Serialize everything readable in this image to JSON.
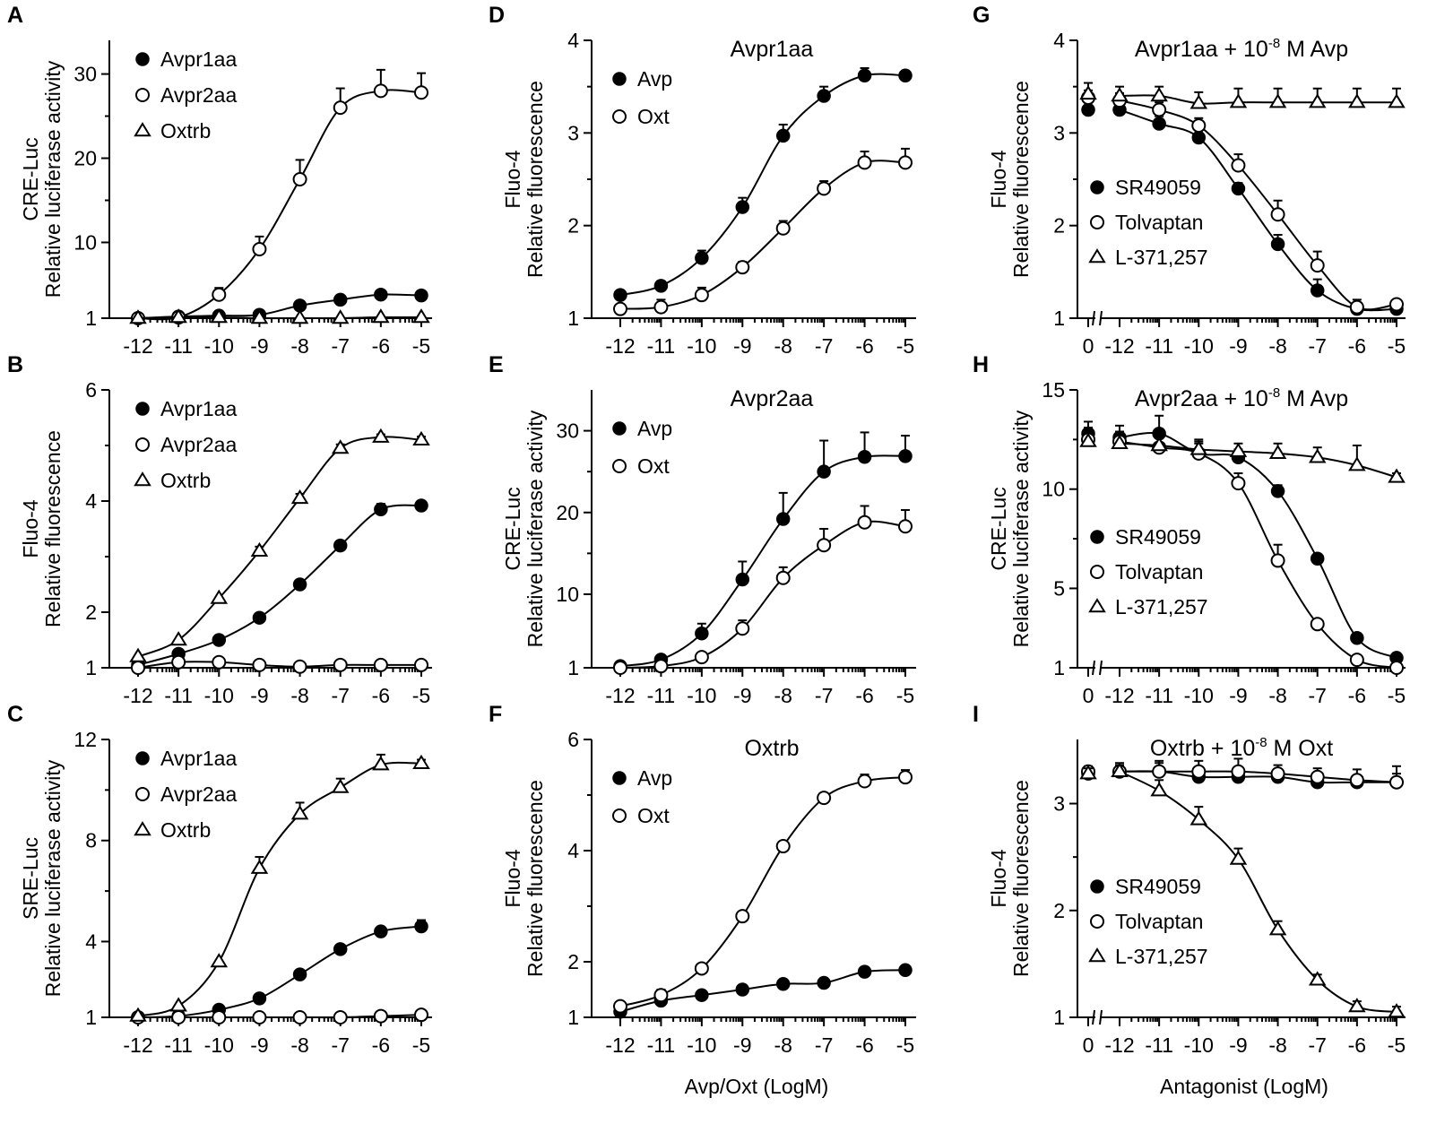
{
  "chart_data": [
    {
      "id": "A",
      "letter": "A",
      "type": "scatter",
      "title": "",
      "ylabel_lines": [
        "CRE-Luc",
        "Relative luciferase activity"
      ],
      "xlabel": "",
      "ylim": [
        1,
        34
      ],
      "yticks": [
        1,
        10,
        20,
        30
      ],
      "xtick_labels": [
        "-12",
        "-11",
        "-10",
        "-9",
        "-8",
        "-7",
        "-6",
        "-5"
      ],
      "x": [
        -12,
        -11,
        -10,
        -9,
        -8,
        -7,
        -6,
        -5
      ],
      "series": [
        {
          "name": "Avpr1aa",
          "marker": "filled-circle",
          "values": [
            1.0,
            1.2,
            1.3,
            1.4,
            2.5,
            3.2,
            3.8,
            3.7
          ],
          "err": [
            0,
            0,
            0,
            0,
            0,
            0,
            0,
            0
          ]
        },
        {
          "name": "Avpr2aa",
          "marker": "open-circle",
          "values": [
            1.0,
            1.1,
            3.8,
            9.2,
            17.5,
            26.0,
            28.0,
            27.8
          ],
          "err": [
            0,
            0,
            0.8,
            1.5,
            2.3,
            2.3,
            2.5,
            2.3
          ]
        },
        {
          "name": "Oxtrb",
          "marker": "open-triangle",
          "values": [
            1.0,
            1.1,
            1.1,
            1.0,
            1.0,
            1.0,
            1.1,
            1.1
          ],
          "err": [
            0,
            0,
            0,
            0,
            0,
            0,
            0,
            0
          ]
        }
      ]
    },
    {
      "id": "B",
      "letter": "B",
      "type": "scatter",
      "title": "",
      "ylabel_lines": [
        "Fluo-4",
        "Relative fluorescence"
      ],
      "xlabel": "",
      "ylim": [
        1,
        6
      ],
      "yticks": [
        1,
        2,
        4,
        6
      ],
      "xtick_labels": [
        "-12",
        "-11",
        "-10",
        "-9",
        "-8",
        "-7",
        "-6",
        "-5"
      ],
      "x": [
        -12,
        -11,
        -10,
        -9,
        -8,
        -7,
        -6,
        -5
      ],
      "series": [
        {
          "name": "Avpr1aa",
          "marker": "filled-circle",
          "values": [
            1.05,
            1.25,
            1.5,
            1.9,
            2.5,
            3.2,
            3.85,
            3.92
          ],
          "err": [
            0,
            0,
            0,
            0,
            0,
            0,
            0.1,
            0.08
          ]
        },
        {
          "name": "Avpr2aa",
          "marker": "open-circle",
          "values": [
            1.0,
            1.1,
            1.1,
            1.05,
            1.02,
            1.05,
            1.05,
            1.05
          ],
          "err": [
            0,
            0,
            0,
            0,
            0,
            0,
            0,
            0
          ]
        },
        {
          "name": "Oxtrb",
          "marker": "open-triangle",
          "values": [
            1.2,
            1.5,
            2.25,
            3.1,
            4.05,
            4.95,
            5.15,
            5.1
          ],
          "err": [
            0,
            0,
            0,
            0.08,
            0.08,
            0.07,
            0.05,
            0.06
          ]
        }
      ]
    },
    {
      "id": "C",
      "letter": "C",
      "type": "scatter",
      "title": "",
      "ylabel_lines": [
        "SRE-Luc",
        "Relative luciferase activity"
      ],
      "xlabel": "",
      "ylim": [
        1,
        12
      ],
      "yticks": [
        1,
        4,
        8,
        12
      ],
      "xtick_labels": [
        "-12",
        "-11",
        "-10",
        "-9",
        "-8",
        "-7",
        "-6",
        "-5"
      ],
      "x": [
        -12,
        -11,
        -10,
        -9,
        -8,
        -7,
        -6,
        -5
      ],
      "series": [
        {
          "name": "Avpr1aa",
          "marker": "filled-circle",
          "values": [
            1.0,
            1.05,
            1.3,
            1.75,
            2.7,
            3.7,
            4.4,
            4.6
          ],
          "err": [
            0,
            0,
            0,
            0,
            0,
            0,
            0.1,
            0.25
          ]
        },
        {
          "name": "Avpr2aa",
          "marker": "open-circle",
          "values": [
            1.0,
            1.0,
            1.0,
            1.0,
            1.0,
            1.0,
            1.05,
            1.1
          ],
          "err": [
            0,
            0,
            0,
            0,
            0,
            0,
            0,
            0
          ]
        },
        {
          "name": "Oxtrb",
          "marker": "open-triangle",
          "values": [
            1.05,
            1.45,
            3.2,
            6.9,
            9.05,
            10.1,
            11.0,
            11.05
          ],
          "err": [
            0,
            0,
            0,
            0.45,
            0.45,
            0.35,
            0.4,
            0.15
          ]
        }
      ]
    },
    {
      "id": "D",
      "letter": "D",
      "type": "scatter",
      "title": "Avpr1aa",
      "ylabel_lines": [
        "Fluo-4",
        "Relative fluorescence"
      ],
      "xlabel": "",
      "ylim": [
        1,
        4
      ],
      "yticks": [
        1,
        2,
        3,
        4
      ],
      "xtick_labels": [
        "-12",
        "-11",
        "-10",
        "-9",
        "-8",
        "-7",
        "-6",
        "-5"
      ],
      "x": [
        -12,
        -11,
        -10,
        -9,
        -8,
        -7,
        -6,
        -5
      ],
      "series": [
        {
          "name": "Avp",
          "marker": "filled-circle",
          "values": [
            1.25,
            1.35,
            1.65,
            2.2,
            2.97,
            3.4,
            3.62,
            3.62
          ],
          "err": [
            0.05,
            0.05,
            0.08,
            0.1,
            0.12,
            0.1,
            0.08,
            0.05
          ]
        },
        {
          "name": "Oxt",
          "marker": "open-circle",
          "values": [
            1.1,
            1.12,
            1.25,
            1.55,
            1.97,
            2.4,
            2.68,
            2.68
          ],
          "err": [
            0.05,
            0.08,
            0.08,
            0.06,
            0.08,
            0.08,
            0.12,
            0.15
          ]
        }
      ]
    },
    {
      "id": "E",
      "letter": "E",
      "type": "scatter",
      "title": "Avpr2aa",
      "ylabel_lines": [
        "CRE-Luc",
        "Relative luciferase activity"
      ],
      "xlabel": "",
      "ylim": [
        1,
        35
      ],
      "yticks": [
        1,
        10,
        20,
        30
      ],
      "xtick_labels": [
        "-12",
        "-11",
        "-10",
        "-9",
        "-8",
        "-7",
        "-6",
        "-5"
      ],
      "x": [
        -12,
        -11,
        -10,
        -9,
        -8,
        -7,
        -6,
        -5
      ],
      "series": [
        {
          "name": "Avp",
          "marker": "filled-circle",
          "values": [
            1.2,
            2.0,
            5.2,
            11.8,
            19.2,
            25.0,
            26.8,
            26.9
          ],
          "err": [
            0,
            0,
            1.2,
            2.2,
            3.2,
            3.8,
            3.0,
            2.5
          ]
        },
        {
          "name": "Oxt",
          "marker": "open-circle",
          "values": [
            1.0,
            1.2,
            2.3,
            5.8,
            12.0,
            16.0,
            18.8,
            18.3
          ],
          "err": [
            0,
            0,
            0,
            1.0,
            1.3,
            2.0,
            2.0,
            2.0
          ]
        }
      ]
    },
    {
      "id": "F",
      "letter": "F",
      "type": "scatter",
      "title": "Oxtrb",
      "ylabel_lines": [
        "Fluo-4",
        "Relative fluorescence"
      ],
      "xlabel": "Avp/Oxt (LogM)",
      "ylim": [
        1,
        6
      ],
      "yticks": [
        1,
        2,
        4,
        6
      ],
      "xtick_labels": [
        "-12",
        "-11",
        "-10",
        "-9",
        "-8",
        "-7",
        "-6",
        "-5"
      ],
      "x": [
        -12,
        -11,
        -10,
        -9,
        -8,
        -7,
        -6,
        -5
      ],
      "series": [
        {
          "name": "Avp",
          "marker": "filled-circle",
          "values": [
            1.1,
            1.3,
            1.4,
            1.5,
            1.6,
            1.62,
            1.82,
            1.85
          ],
          "err": [
            0,
            0,
            0,
            0,
            0,
            0,
            0,
            0
          ]
        },
        {
          "name": "Oxt",
          "marker": "open-circle",
          "values": [
            1.2,
            1.4,
            1.88,
            2.82,
            4.08,
            4.95,
            5.25,
            5.32
          ],
          "err": [
            0,
            0.1,
            0,
            0,
            0.08,
            0.06,
            0.12,
            0.13
          ]
        }
      ]
    },
    {
      "id": "G",
      "letter": "G",
      "type": "scatter",
      "title_main": "Avpr1aa + 10",
      "title_sup": "-8",
      "title_tail": " M Avp",
      "ylabel_lines": [
        "Fluo-4",
        "Relative fluorescence"
      ],
      "xlabel": "",
      "ylim": [
        1,
        4
      ],
      "yticks": [
        1,
        2,
        3,
        4
      ],
      "xtick_labels": [
        "0",
        "-12",
        "-11",
        "-10",
        "-9",
        "-8",
        "-7",
        "-6",
        "-5"
      ],
      "x": [
        -12,
        -11,
        -10,
        -9,
        -8,
        -7,
        -6,
        -5
      ],
      "series": [
        {
          "name": "SR49059",
          "marker": "filled-circle",
          "zero_value": 3.25,
          "zero_err": 0.08,
          "values": [
            3.25,
            3.1,
            2.95,
            2.4,
            1.8,
            1.3,
            1.1,
            1.1
          ],
          "err": [
            0.08,
            0.08,
            0.08,
            0.06,
            0.1,
            0.12,
            0.05,
            0.05
          ]
        },
        {
          "name": "Tolvaptan",
          "marker": "open-circle",
          "values": [
            3.35,
            3.25,
            3.08,
            2.65,
            2.12,
            1.57,
            1.12,
            1.15
          ],
          "err": [
            0.08,
            0.08,
            0.08,
            0.12,
            0.15,
            0.15,
            0.08,
            0.05
          ],
          "zero_value": 3.38,
          "zero_err": 0.08
        },
        {
          "name": "L-371,257",
          "marker": "open-triangle",
          "values": [
            3.4,
            3.4,
            3.32,
            3.33,
            3.33,
            3.33,
            3.33,
            3.33
          ],
          "err": [
            0.1,
            0.1,
            0.12,
            0.15,
            0.15,
            0.15,
            0.15,
            0.15
          ],
          "zero_value": 3.42,
          "zero_err": 0.12
        }
      ]
    },
    {
      "id": "H",
      "letter": "H",
      "type": "scatter",
      "title_main": "Avpr2aa + 10",
      "title_sup": "-8",
      "title_tail": " M Avp",
      "ylabel_lines": [
        "CRE-Luc",
        "Relative luciferase activity"
      ],
      "xlabel": "",
      "ylim": [
        1,
        15
      ],
      "yticks": [
        1,
        5,
        10,
        15
      ],
      "xtick_labels": [
        "0",
        "-12",
        "-11",
        "-10",
        "-9",
        "-8",
        "-7",
        "-6",
        "-5"
      ],
      "x": [
        -12,
        -11,
        -10,
        -9,
        -8,
        -7,
        -6,
        -5
      ],
      "series": [
        {
          "name": "SR49059",
          "marker": "filled-circle",
          "zero_value": 12.8,
          "zero_err": 0.6,
          "values": [
            12.6,
            12.8,
            11.8,
            11.6,
            9.9,
            6.5,
            2.5,
            1.5
          ],
          "err": [
            0.6,
            0.9,
            0.5,
            0.4,
            0.3,
            0.2,
            0.1,
            0.1
          ]
        },
        {
          "name": "Tolvaptan",
          "marker": "open-circle",
          "values": [
            12.4,
            12.1,
            11.8,
            10.3,
            6.4,
            3.2,
            1.4,
            1.0
          ],
          "err": [
            0.5,
            0.6,
            0.6,
            0.5,
            0.8,
            0.2,
            0.1,
            0.05
          ],
          "zero_value": 12.5,
          "zero_err": 0.6
        },
        {
          "name": "L-371,257",
          "marker": "open-triangle",
          "values": [
            12.3,
            12.2,
            12.0,
            11.9,
            11.8,
            11.6,
            11.2,
            10.6
          ],
          "err": [
            0.5,
            0.7,
            0.5,
            0.4,
            0.5,
            0.5,
            1.0,
            0.2
          ],
          "zero_value": 12.4,
          "zero_err": 0.6
        }
      ]
    },
    {
      "id": "I",
      "letter": "I",
      "type": "scatter",
      "title_main": "Oxtrb + 10",
      "title_sup": "-8",
      "title_tail": " M Oxt",
      "ylabel_lines": [
        "Fluo-4",
        "Relative fluorescence"
      ],
      "xlabel": "Antagonist (LogM)",
      "ylim": [
        1,
        3.6
      ],
      "yticks": [
        1,
        2,
        3
      ],
      "xtick_labels": [
        "0",
        "-12",
        "-11",
        "-10",
        "-9",
        "-8",
        "-7",
        "-6",
        "-5"
      ],
      "x": [
        -12,
        -11,
        -10,
        -9,
        -8,
        -7,
        -6,
        -5
      ],
      "series": [
        {
          "name": "SR49059",
          "marker": "filled-circle",
          "zero_value": 3.28,
          "zero_err": 0.05,
          "values": [
            3.3,
            3.3,
            3.25,
            3.25,
            3.25,
            3.2,
            3.2,
            3.2
          ],
          "err": [
            0.06,
            0.08,
            0.06,
            0.06,
            0.06,
            0.06,
            0.06,
            0.08
          ]
        },
        {
          "name": "Tolvaptan",
          "marker": "open-circle",
          "values": [
            3.3,
            3.3,
            3.3,
            3.3,
            3.28,
            3.25,
            3.22,
            3.2
          ],
          "err": [
            0.08,
            0.1,
            0.1,
            0.12,
            0.08,
            0.08,
            0.1,
            0.15
          ],
          "zero_value": 3.3,
          "zero_err": 0.05
        },
        {
          "name": "L-371,257",
          "marker": "open-triangle",
          "values": [
            3.3,
            3.12,
            2.85,
            2.48,
            1.82,
            1.35,
            1.1,
            1.05
          ],
          "err": [
            0.06,
            0.1,
            0.12,
            0.1,
            0.08,
            0.05,
            0.05,
            0.05
          ],
          "zero_value": 3.28,
          "zero_err": 0.05
        }
      ]
    }
  ],
  "colors": {
    "ink": "#000000",
    "background": "#ffffff"
  }
}
